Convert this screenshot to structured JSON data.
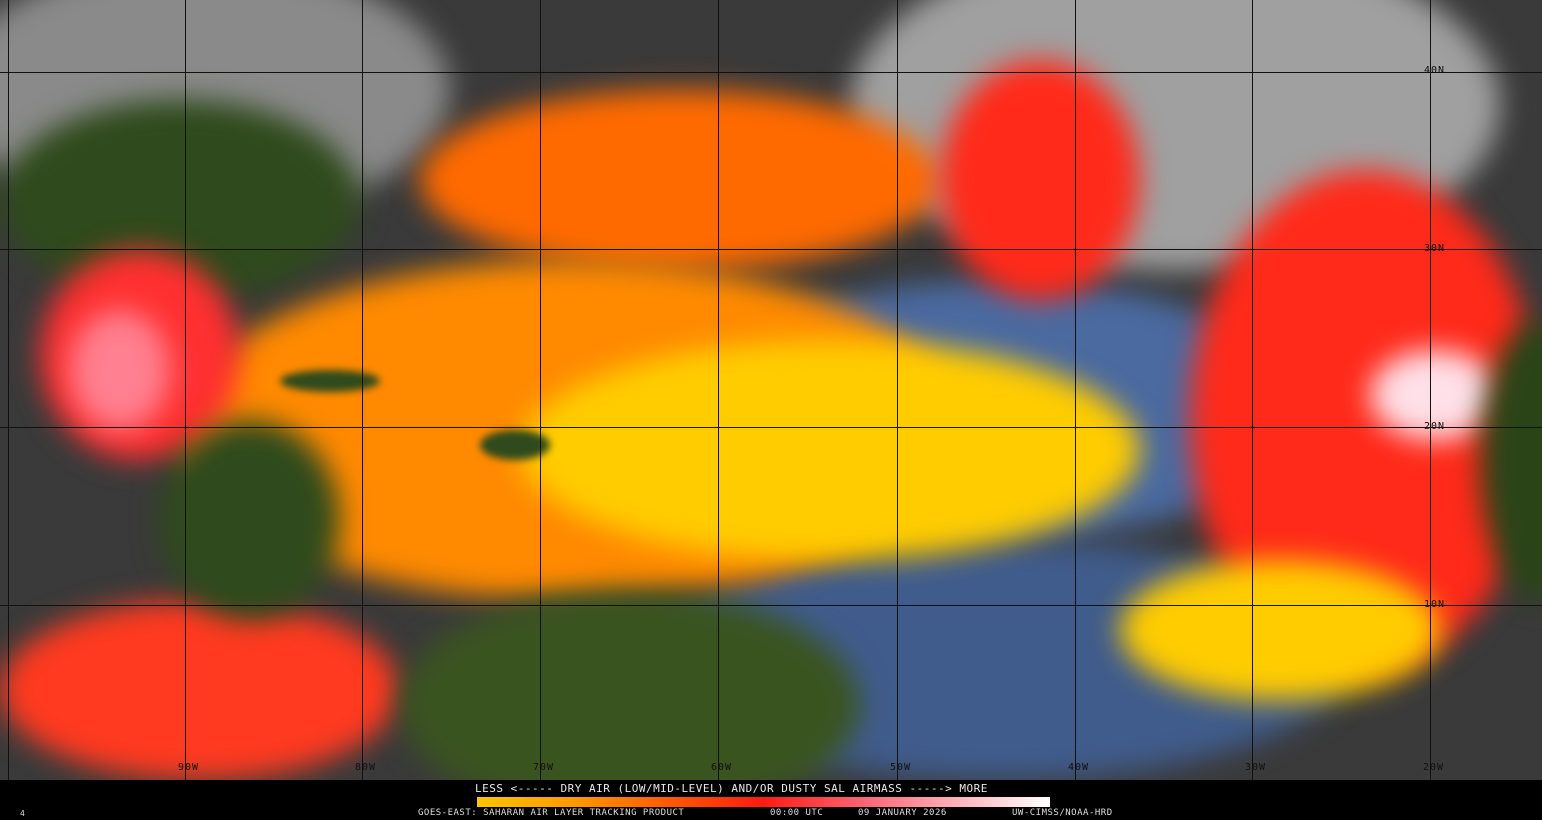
{
  "product": {
    "legend_title": "LESS <----- DRY AIR (LOW/MID-LEVEL) AND/OR DUSTY SAL AIRMASS -----> MORE",
    "satellite_product": "GOES-EAST: SAHARAN AIR LAYER TRACKING PRODUCT",
    "time": "00:00 UTC",
    "date": "09 JANUARY 2026",
    "credit": "UW-CIMSS/NOAA-HRD",
    "corner_mark": "4"
  },
  "legend_colors": [
    "#ffc400",
    "#ff9a00",
    "#ff5a00",
    "#ff1a10",
    "#ff6070",
    "#ffb0b8",
    "#ffffff"
  ],
  "longitude_labels": [
    "90W",
    "80W",
    "70W",
    "60W",
    "50W",
    "40W",
    "30W",
    "20W"
  ],
  "latitude_labels": [
    "40N",
    "30N",
    "20N",
    "10N"
  ],
  "colors": {
    "land": "#2f4a1c",
    "ocean_moist": "#4a6aa0",
    "cloud": "#9a9a9a",
    "dry_low": "#ffd800",
    "dry_mid": "#ff7a00",
    "dry_high": "#ff2a1a",
    "dust_max": "#ffe0e8"
  }
}
